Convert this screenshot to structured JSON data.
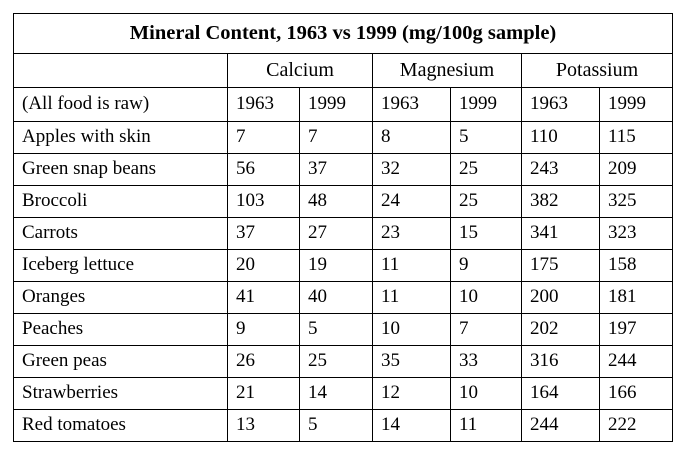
{
  "title": "Mineral Content, 1963 vs 1999 (mg/100g sample)",
  "groups": [
    "Calcium",
    "Magnesium",
    "Potassium"
  ],
  "subheader": {
    "label": "(All food is raw)",
    "years": [
      "1963",
      "1999",
      "1963",
      "1999",
      "1963",
      "1999"
    ]
  },
  "rows": [
    {
      "food": "Apples with skin",
      "values": [
        "7",
        "7",
        "8",
        "5",
        "110",
        "115"
      ]
    },
    {
      "food": "Green snap beans",
      "values": [
        "56",
        "37",
        "32",
        "25",
        "243",
        "209"
      ]
    },
    {
      "food": "Broccoli",
      "values": [
        "103",
        "48",
        "24",
        "25",
        "382",
        "325"
      ]
    },
    {
      "food": "Carrots",
      "values": [
        "37",
        "27",
        "23",
        "15",
        "341",
        "323"
      ]
    },
    {
      "food": "Iceberg lettuce",
      "values": [
        "20",
        "19",
        "11",
        "9",
        "175",
        "158"
      ]
    },
    {
      "food": "Oranges",
      "values": [
        "41",
        "40",
        "11",
        "10",
        "200",
        "181"
      ]
    },
    {
      "food": "Peaches",
      "values": [
        "9",
        "5",
        "10",
        "7",
        "202",
        "197"
      ]
    },
    {
      "food": "Green peas",
      "values": [
        "26",
        "25",
        "35",
        "33",
        "316",
        "244"
      ]
    },
    {
      "food": "Strawberries",
      "values": [
        "21",
        "14",
        "12",
        "10",
        "164",
        "166"
      ]
    },
    {
      "food": "Red tomatoes",
      "values": [
        "13",
        "5",
        "14",
        "11",
        "244",
        "222"
      ]
    }
  ]
}
